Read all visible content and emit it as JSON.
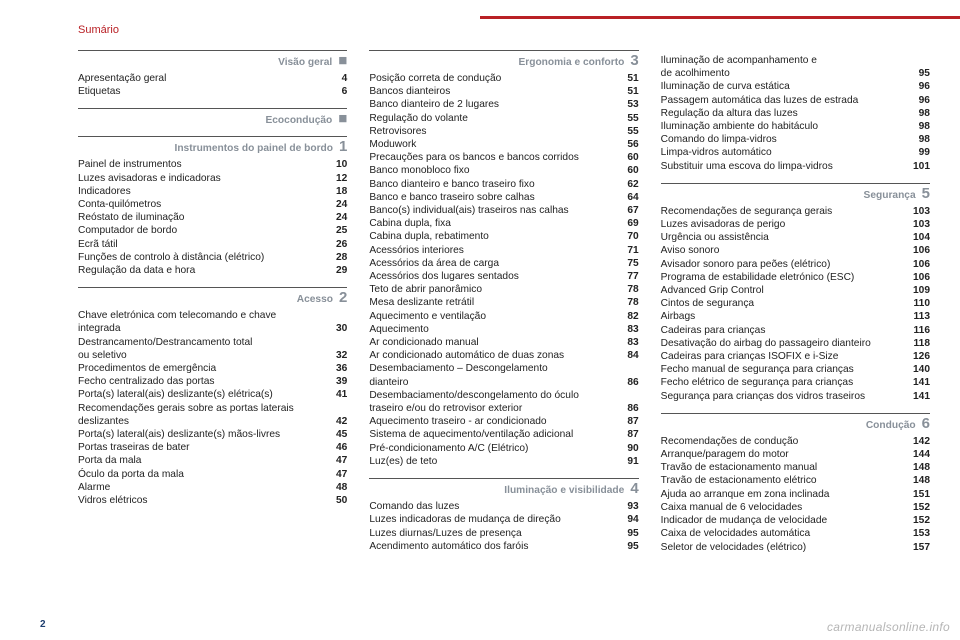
{
  "header": {
    "title": "Sumário"
  },
  "footer": {
    "page": "2",
    "watermark": "carmanualsonline.info"
  },
  "colors": {
    "accent": "#b92025",
    "muted": "#889099",
    "text": "#222"
  },
  "columns": [
    {
      "sections": [
        {
          "title": "Visão geral",
          "marker": "■",
          "entries": [
            {
              "label": "Apresentação geral",
              "page": "4"
            },
            {
              "label": "Etiquetas",
              "page": "6"
            }
          ]
        },
        {
          "title": "Ecocondução",
          "marker": "■",
          "entries": []
        },
        {
          "title": "Instrumentos do painel de bordo",
          "marker": "1",
          "entries": [
            {
              "label": "Painel de instrumentos",
              "page": "10"
            },
            {
              "label": "Luzes avisadoras e indicadoras",
              "page": "12"
            },
            {
              "label": "Indicadores",
              "page": "18"
            },
            {
              "label": "Conta-quilómetros",
              "page": "24"
            },
            {
              "label": "Reóstato de iluminação",
              "page": "24"
            },
            {
              "label": "Computador de bordo",
              "page": "25"
            },
            {
              "label": "Ecrã tátil",
              "page": "26"
            },
            {
              "label": "Funções de controlo à distância (elétrico)",
              "page": "28"
            },
            {
              "label": "Regulação da data e hora",
              "page": "29"
            }
          ]
        },
        {
          "title": "Acesso",
          "marker": "2",
          "entries": [
            {
              "label": "Chave eletrónica com telecomando e chave",
              "cont": true
            },
            {
              "label": "integrada",
              "page": "30"
            },
            {
              "label": "Destrancamento/Destrancamento total",
              "cont": true
            },
            {
              "label": "ou seletivo",
              "page": "32"
            },
            {
              "label": "Procedimentos de emergência",
              "page": "36"
            },
            {
              "label": "Fecho centralizado das portas",
              "page": "39"
            },
            {
              "label": "Porta(s) lateral(ais) deslizante(s) elétrica(s)",
              "page": "41"
            },
            {
              "label": "Recomendações gerais sobre as portas laterais",
              "cont": true
            },
            {
              "label": "deslizantes",
              "page": "42"
            },
            {
              "label": "Porta(s) lateral(ais) deslizante(s) mãos-livres",
              "page": "45"
            },
            {
              "label": "Portas traseiras de bater",
              "page": "46"
            },
            {
              "label": "Porta da mala",
              "page": "47"
            },
            {
              "label": "Óculo da porta da mala",
              "page": "47"
            },
            {
              "label": "Alarme",
              "page": "48"
            },
            {
              "label": "Vidros elétricos",
              "page": "50"
            }
          ]
        }
      ]
    },
    {
      "sections": [
        {
          "title": "Ergonomia e conforto",
          "marker": "3",
          "entries": [
            {
              "label": "Posição correta de condução",
              "page": "51"
            },
            {
              "label": "Bancos dianteiros",
              "page": "51"
            },
            {
              "label": "Banco dianteiro de 2 lugares",
              "page": "53"
            },
            {
              "label": "Regulação do volante",
              "page": "55"
            },
            {
              "label": "Retrovisores",
              "page": "55"
            },
            {
              "label": "Moduwork",
              "page": "56"
            },
            {
              "label": "Precauções para os bancos e bancos corridos",
              "page": "60"
            },
            {
              "label": "Banco monobloco fixo",
              "page": "60"
            },
            {
              "label": "Banco dianteiro e banco traseiro fixo",
              "page": "62"
            },
            {
              "label": "Banco e banco traseiro sobre calhas",
              "page": "64"
            },
            {
              "label": "Banco(s) individual(ais) traseiros nas calhas",
              "page": "67"
            },
            {
              "label": "Cabina dupla, fixa",
              "page": "69"
            },
            {
              "label": "Cabina dupla, rebatimento",
              "page": "70"
            },
            {
              "label": "Acessórios interiores",
              "page": "71"
            },
            {
              "label": "Acessórios da área de carga",
              "page": "75"
            },
            {
              "label": "Acessórios dos lugares sentados",
              "page": "77"
            },
            {
              "label": "Teto de abrir panorâmico",
              "page": "78"
            },
            {
              "label": "Mesa deslizante retrátil",
              "page": "78"
            },
            {
              "label": "Aquecimento e ventilação",
              "page": "82"
            },
            {
              "label": "Aquecimento",
              "page": "83"
            },
            {
              "label": "Ar condicionado manual",
              "page": "83"
            },
            {
              "label": "Ar condicionado automático de duas zonas",
              "page": "84"
            },
            {
              "label": "Desembaciamento – Descongelamento",
              "cont": true
            },
            {
              "label": "dianteiro",
              "page": "86"
            },
            {
              "label": "Desembaciamento/descongelamento do óculo",
              "cont": true
            },
            {
              "label": "traseiro e/ou do retrovisor exterior",
              "page": "86"
            },
            {
              "label": "Aquecimento traseiro - ar condicionado",
              "page": "87"
            },
            {
              "label": "Sistema de aquecimento/ventilação adicional",
              "page": "87"
            },
            {
              "label": "Pré-condicionamento A/C (Elétrico)",
              "page": "90"
            },
            {
              "label": "Luz(es) de teto",
              "page": "91"
            }
          ]
        },
        {
          "title": "Iluminação e visibilidade",
          "marker": "4",
          "entries": [
            {
              "label": "Comando das luzes",
              "page": "93"
            },
            {
              "label": "Luzes indicadoras de mudança de direção",
              "page": "94"
            },
            {
              "label": "Luzes diurnas/Luzes de presença",
              "page": "95"
            },
            {
              "label": "Acendimento automático dos faróis",
              "page": "95"
            }
          ]
        }
      ]
    },
    {
      "sections": [
        {
          "title": "",
          "marker": "",
          "noHead": true,
          "entries": [
            {
              "label": "Iluminação de acompanhamento e",
              "cont": true
            },
            {
              "label": "de acolhimento",
              "page": "95"
            },
            {
              "label": "Iluminação de curva estática",
              "page": "96"
            },
            {
              "label": "Passagem automática das luzes de estrada",
              "page": "96"
            },
            {
              "label": "Regulação da altura das luzes",
              "page": "98"
            },
            {
              "label": "Iluminação ambiente do habitáculo",
              "page": "98"
            },
            {
              "label": "Comando do limpa-vidros",
              "page": "98"
            },
            {
              "label": "Limpa-vidros automático",
              "page": "99"
            },
            {
              "label": "Substituir uma escova do limpa-vidros",
              "page": "101"
            }
          ]
        },
        {
          "title": "Segurança",
          "marker": "5",
          "entries": [
            {
              "label": "Recomendações de segurança gerais",
              "page": "103"
            },
            {
              "label": "Luzes avisadoras de perigo",
              "page": "103"
            },
            {
              "label": "Urgência ou assistência",
              "page": "104"
            },
            {
              "label": "Aviso sonoro",
              "page": "106"
            },
            {
              "label": "Avisador sonoro para peões (elétrico)",
              "page": "106"
            },
            {
              "label": "Programa de estabilidade eletrónico (ESC)",
              "page": "106"
            },
            {
              "label": "Advanced Grip Control",
              "page": "109"
            },
            {
              "label": "Cintos de segurança",
              "page": "110"
            },
            {
              "label": "Airbags",
              "page": "113"
            },
            {
              "label": "Cadeiras para crianças",
              "page": "116"
            },
            {
              "label": "Desativação do airbag do passageiro dianteiro",
              "page": "118"
            },
            {
              "label": "Cadeiras para crianças ISOFIX e i-Size",
              "page": "126"
            },
            {
              "label": "Fecho manual de segurança para crianças",
              "page": "140"
            },
            {
              "label": "Fecho elétrico de segurança para crianças",
              "page": "141"
            },
            {
              "label": "Segurança para crianças dos vidros traseiros",
              "page": "141"
            }
          ]
        },
        {
          "title": "Condução",
          "marker": "6",
          "entries": [
            {
              "label": "Recomendações de condução",
              "page": "142"
            },
            {
              "label": "Arranque/paragem do motor",
              "page": "144"
            },
            {
              "label": "Travão de estacionamento manual",
              "page": "148"
            },
            {
              "label": "Travão de estacionamento elétrico",
              "page": "148"
            },
            {
              "label": "Ajuda ao arranque em zona inclinada",
              "page": "151"
            },
            {
              "label": "Caixa manual de 6 velocidades",
              "page": "152"
            },
            {
              "label": "Indicador de mudança de velocidade",
              "page": "152"
            },
            {
              "label": "Caixa de velocidades automática",
              "page": "153"
            },
            {
              "label": "Seletor de velocidades (elétrico)",
              "page": "157"
            }
          ]
        }
      ]
    }
  ]
}
